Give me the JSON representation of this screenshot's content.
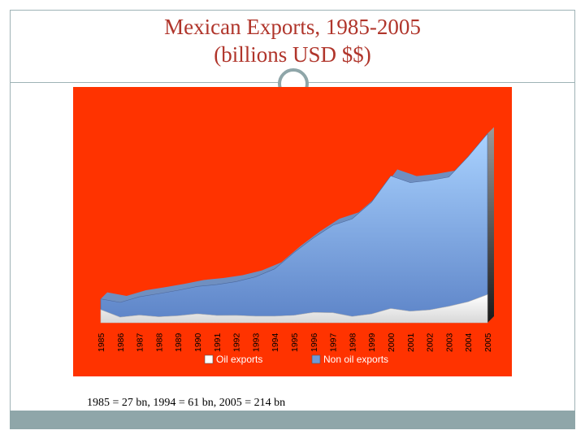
{
  "slide": {
    "title_line1": "Mexican Exports, 1985-2005",
    "title_line2": "(billions USD $$)",
    "caption": "1985 = 27 bn, 1994 = 61 bn, 2005 = 214 bn",
    "colors": {
      "title": "#b0352b",
      "frame": "#9fb3b6",
      "accent_bar": "#8fa6a9"
    }
  },
  "chart_data": {
    "type": "area",
    "stacked": true,
    "categories": [
      "1985",
      "1986",
      "1987",
      "1988",
      "1989",
      "1990",
      "1991",
      "1992",
      "1993",
      "1994",
      "1995",
      "1996",
      "1997",
      "1998",
      "1999",
      "2000",
      "2001",
      "2002",
      "2003",
      "2004",
      "2005"
    ],
    "series": [
      {
        "name": "Oil exports",
        "color": "#ffffff",
        "values": [
          14.8,
          6.3,
          8.6,
          6.7,
          7.9,
          10.1,
          8.2,
          8.3,
          7.4,
          7.4,
          8.4,
          11.7,
          11.3,
          7.1,
          9.9,
          16.1,
          13.0,
          14.5,
          18.6,
          23.7,
          31.9
        ]
      },
      {
        "name": "Non oil exports",
        "color": "#8fbef0",
        "values": [
          12.2,
          16.7,
          20.8,
          26.2,
          28.8,
          31.0,
          35.0,
          38.2,
          44.5,
          53.6,
          71.2,
          84.3,
          99.0,
          110.4,
          126.5,
          150.1,
          145.6,
          146.5,
          146.3,
          164.3,
          182.1
        ]
      }
    ],
    "ylim": [
      0,
      230
    ],
    "grid": false,
    "legend_position": "bottom",
    "background": "#ff3300"
  }
}
